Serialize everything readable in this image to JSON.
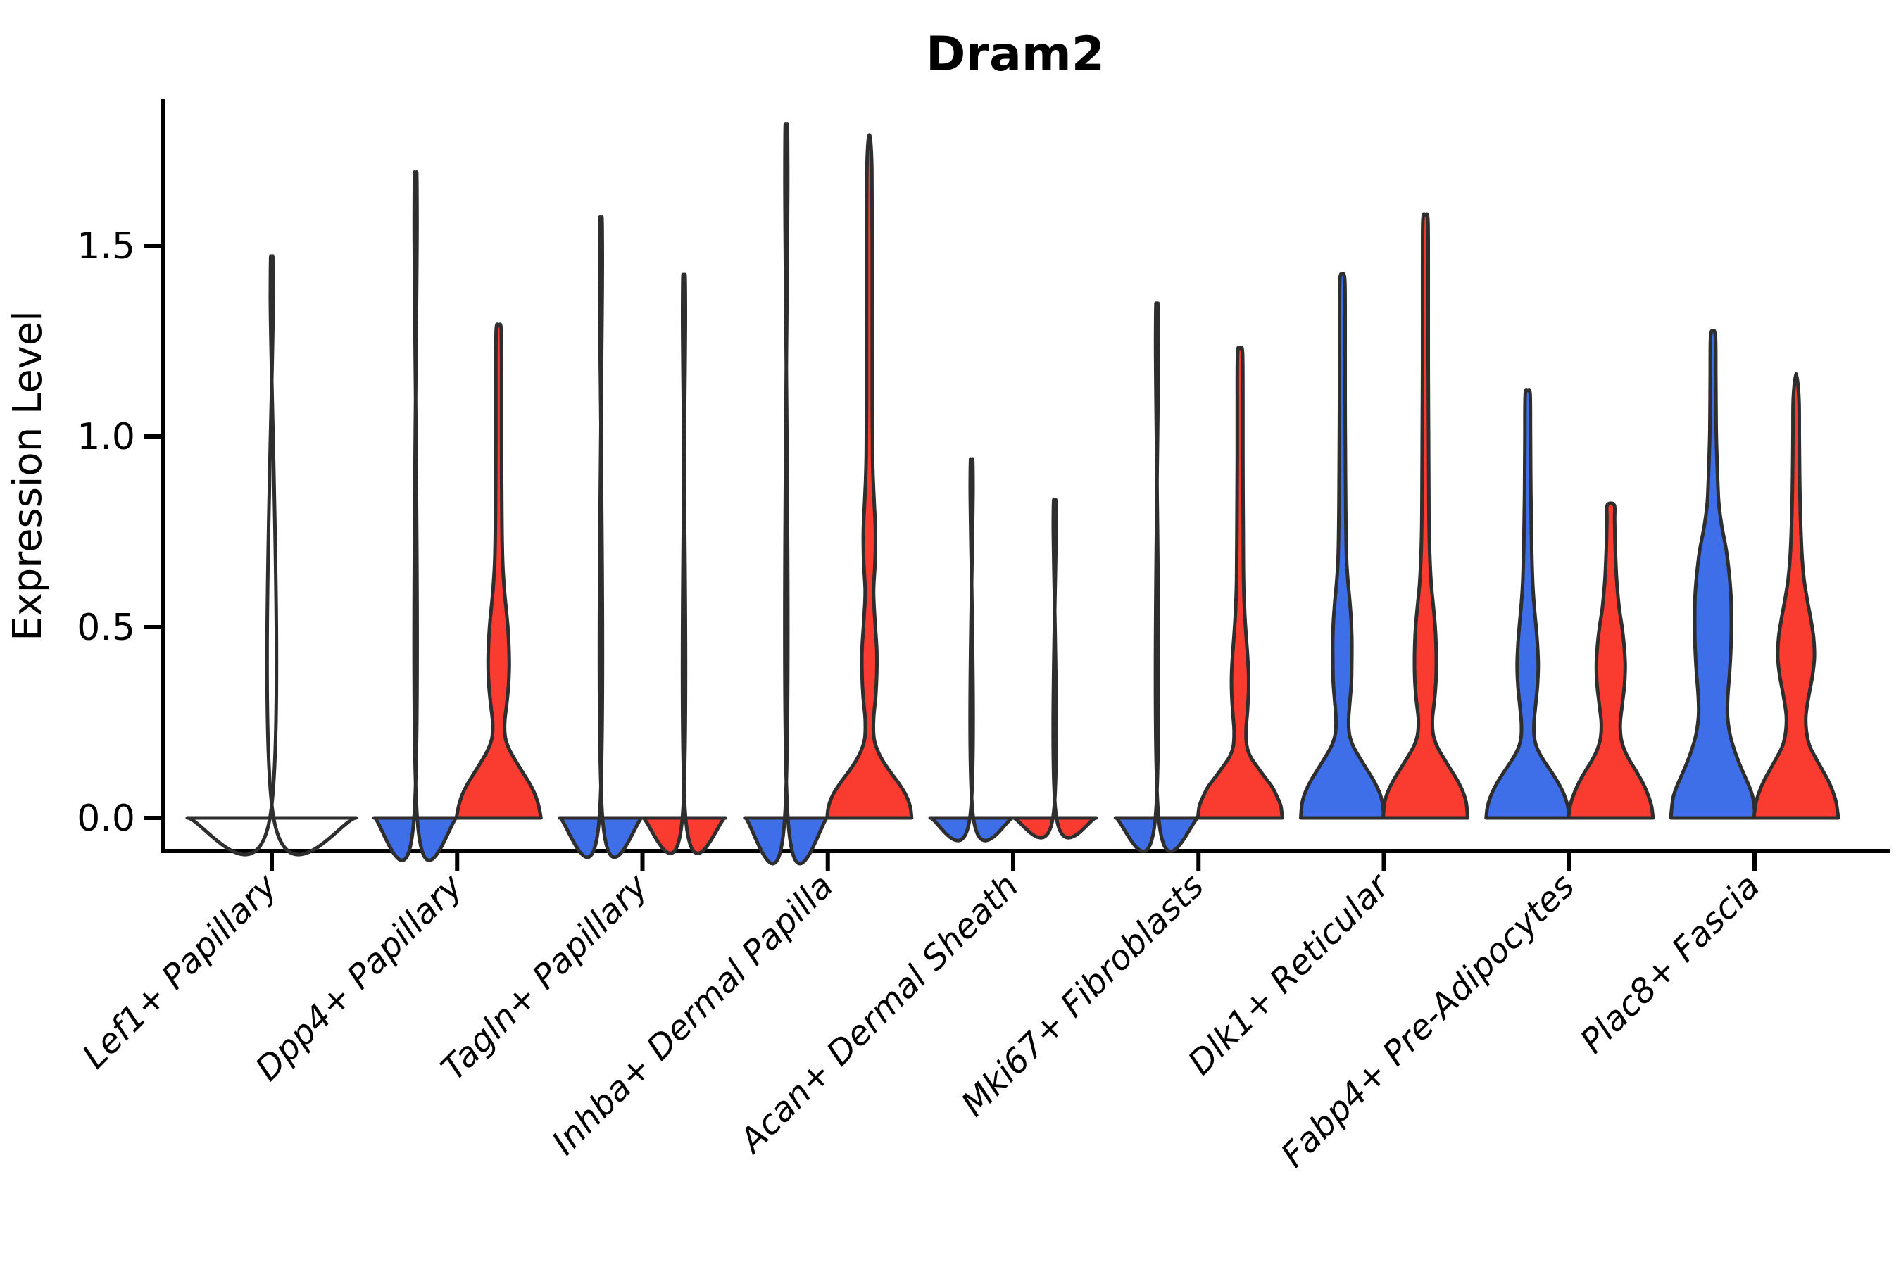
{
  "title": "Dram2",
  "axes": {
    "ylabel": "Expression Level",
    "ytick_labels": [
      "0.0",
      "0.5",
      "1.0",
      "1.5"
    ]
  },
  "colors": {
    "blue": "#3E6EE8",
    "red": "#F93B30",
    "outline": "#2E2E2E",
    "background": "#FFFFFF"
  },
  "chart_data": {
    "type": "violin",
    "title": "Dram2",
    "xlabel": "",
    "ylabel": "Expression Level",
    "yticks": [
      0.0,
      0.5,
      1.0,
      1.5
    ],
    "ytick_labels": [
      "0.0",
      "0.5",
      "1.0",
      "1.5"
    ],
    "ylim": [
      -0.09,
      1.89
    ],
    "grid": false,
    "legend": "none shown",
    "categories": [
      "Lef1+ Papillary",
      "Dpp4+ Papillary",
      "Tagln+ Papillary",
      "Inhba+ Dermal Papilla",
      "Acan+ Dermal Sheath",
      "Mki67+ Fibroblasts",
      "Dlk1+ Reticular",
      "Fabp4+ Pre-Adipocytes",
      "Plac8+ Fascia"
    ],
    "split_fill_colors": {
      "left_violin": "blue",
      "right_violin": "red"
    },
    "violin_outline_color": "#2E2E2E",
    "violins": [
      {
        "ci": 0,
        "category": "Lef1+ Papillary",
        "side": "single",
        "color": "outline",
        "max": 1.38,
        "profile": [
          [
            0,
            120
          ],
          [
            0.007,
            2
          ],
          [
            1.37,
            2
          ],
          [
            1.375,
            0
          ]
        ]
      },
      {
        "ci": 1,
        "category": "Dpp4+ Papillary",
        "side": "left",
        "color": "blue",
        "max": 1.58,
        "profile": [
          [
            0,
            59
          ],
          [
            0.007,
            2
          ],
          [
            1.575,
            2
          ],
          [
            1.58,
            0
          ]
        ]
      },
      {
        "ci": 1,
        "category": "Dpp4+ Papillary",
        "side": "right",
        "color": "red",
        "max": 1.29,
        "profile": [
          [
            0,
            60
          ],
          [
            0.03,
            57
          ],
          [
            0.06,
            52
          ],
          [
            0.09,
            44
          ],
          [
            0.12,
            34
          ],
          [
            0.15,
            24
          ],
          [
            0.18,
            15
          ],
          [
            0.21,
            9.5
          ],
          [
            0.25,
            8.5
          ],
          [
            0.3,
            11.5
          ],
          [
            0.35,
            14
          ],
          [
            0.4,
            15
          ],
          [
            0.45,
            14.5
          ],
          [
            0.5,
            13
          ],
          [
            0.55,
            10.5
          ],
          [
            0.6,
            8
          ],
          [
            0.68,
            5.5
          ],
          [
            0.8,
            4.5
          ],
          [
            1.0,
            4
          ],
          [
            1.15,
            4
          ],
          [
            1.28,
            3.5
          ],
          [
            1.29,
            0
          ]
        ]
      },
      {
        "ci": 2,
        "category": "Tagln+ Papillary",
        "side": "left",
        "color": "blue",
        "max": 1.47,
        "profile": [
          [
            0,
            59
          ],
          [
            0.007,
            2
          ],
          [
            1.465,
            2
          ],
          [
            1.47,
            0
          ]
        ]
      },
      {
        "ci": 2,
        "category": "Tagln+ Papillary",
        "side": "right",
        "color": "red",
        "max": 1.33,
        "profile": [
          [
            0,
            59
          ],
          [
            0.007,
            2
          ],
          [
            1.325,
            2
          ],
          [
            1.33,
            0
          ]
        ]
      },
      {
        "ci": 3,
        "category": "Inhba+ Dermal Papilla",
        "side": "left",
        "color": "blue",
        "max": 1.7,
        "profile": [
          [
            0,
            59
          ],
          [
            0.007,
            2
          ],
          [
            1.69,
            2
          ],
          [
            1.7,
            0
          ]
        ]
      },
      {
        "ci": 3,
        "category": "Inhba+ Dermal Papilla",
        "side": "right",
        "color": "red",
        "max": 1.79,
        "profile": [
          [
            0,
            60
          ],
          [
            0.03,
            58
          ],
          [
            0.06,
            52
          ],
          [
            0.09,
            42
          ],
          [
            0.12,
            30
          ],
          [
            0.15,
            19
          ],
          [
            0.18,
            11
          ],
          [
            0.21,
            6.5
          ],
          [
            0.26,
            6
          ],
          [
            0.32,
            9
          ],
          [
            0.38,
            10.5
          ],
          [
            0.44,
            10.5
          ],
          [
            0.5,
            8.5
          ],
          [
            0.56,
            6.5
          ],
          [
            0.6,
            6
          ],
          [
            0.65,
            7.5
          ],
          [
            0.7,
            8.5
          ],
          [
            0.76,
            8.5
          ],
          [
            0.82,
            7
          ],
          [
            0.88,
            5.5
          ],
          [
            0.95,
            4.5
          ],
          [
            1.1,
            4
          ],
          [
            1.4,
            4
          ],
          [
            1.7,
            3.5
          ],
          [
            1.79,
            0
          ]
        ]
      },
      {
        "ci": 4,
        "category": "Acan+ Dermal Sheath",
        "side": "left",
        "color": "blue",
        "max": 0.88,
        "profile": [
          [
            0,
            59
          ],
          [
            0.007,
            2
          ],
          [
            0.875,
            2
          ],
          [
            0.88,
            0
          ]
        ]
      },
      {
        "ci": 4,
        "category": "Acan+ Dermal Sheath",
        "side": "right",
        "color": "red",
        "max": 0.78,
        "profile": [
          [
            0,
            59
          ],
          [
            0.007,
            2
          ],
          [
            0.775,
            2
          ],
          [
            0.78,
            0
          ]
        ]
      },
      {
        "ci": 5,
        "category": "Mki67+ Fibroblasts",
        "side": "left",
        "color": "blue",
        "max": 1.26,
        "profile": [
          [
            0,
            59
          ],
          [
            0.007,
            2
          ],
          [
            1.255,
            2
          ],
          [
            1.26,
            0
          ]
        ]
      },
      {
        "ci": 5,
        "category": "Mki67+ Fibroblasts",
        "side": "right",
        "color": "red",
        "max": 1.23,
        "profile": [
          [
            0,
            60
          ],
          [
            0.03,
            58
          ],
          [
            0.05,
            54
          ],
          [
            0.08,
            46
          ],
          [
            0.1,
            38
          ],
          [
            0.13,
            26
          ],
          [
            0.16,
            15
          ],
          [
            0.19,
            9.5
          ],
          [
            0.23,
            8.5
          ],
          [
            0.28,
            10.5
          ],
          [
            0.33,
            12
          ],
          [
            0.38,
            12
          ],
          [
            0.43,
            10.5
          ],
          [
            0.48,
            8.5
          ],
          [
            0.54,
            6.5
          ],
          [
            0.62,
            5
          ],
          [
            0.75,
            4.5
          ],
          [
            0.95,
            4
          ],
          [
            1.1,
            4
          ],
          [
            1.22,
            3.5
          ],
          [
            1.23,
            0
          ]
        ]
      },
      {
        "ci": 6,
        "category": "Dlk1+ Reticular",
        "side": "left",
        "color": "blue",
        "max": 1.42,
        "profile": [
          [
            0,
            59
          ],
          [
            0.04,
            57
          ],
          [
            0.07,
            52
          ],
          [
            0.1,
            44
          ],
          [
            0.13,
            34
          ],
          [
            0.16,
            24
          ],
          [
            0.19,
            15
          ],
          [
            0.22,
            10
          ],
          [
            0.26,
            9
          ],
          [
            0.31,
            11
          ],
          [
            0.36,
            13
          ],
          [
            0.42,
            13.5
          ],
          [
            0.47,
            13.5
          ],
          [
            0.52,
            12.5
          ],
          [
            0.57,
            10.5
          ],
          [
            0.62,
            8
          ],
          [
            0.68,
            6
          ],
          [
            0.78,
            5
          ],
          [
            0.9,
            4.5
          ],
          [
            1.1,
            4
          ],
          [
            1.3,
            4
          ],
          [
            1.41,
            3.5
          ],
          [
            1.425,
            0
          ]
        ]
      },
      {
        "ci": 6,
        "category": "Dlk1+ Reticular",
        "side": "right",
        "color": "red",
        "max": 1.57,
        "profile": [
          [
            0,
            60
          ],
          [
            0.04,
            58
          ],
          [
            0.07,
            53
          ],
          [
            0.1,
            45
          ],
          [
            0.13,
            35
          ],
          [
            0.16,
            25
          ],
          [
            0.19,
            16
          ],
          [
            0.22,
            11
          ],
          [
            0.26,
            10
          ],
          [
            0.31,
            13
          ],
          [
            0.36,
            15
          ],
          [
            0.41,
            15.5
          ],
          [
            0.46,
            15
          ],
          [
            0.51,
            13.5
          ],
          [
            0.56,
            11
          ],
          [
            0.62,
            8
          ],
          [
            0.7,
            6
          ],
          [
            0.8,
            5
          ],
          [
            1.0,
            4.5
          ],
          [
            1.2,
            4
          ],
          [
            1.45,
            4
          ],
          [
            1.57,
            3.5
          ],
          [
            1.58,
            0
          ]
        ]
      },
      {
        "ci": 7,
        "category": "Fabp4+ Pre-Adipocytes",
        "side": "left",
        "color": "blue",
        "max": 1.12,
        "profile": [
          [
            0,
            59
          ],
          [
            0.03,
            57
          ],
          [
            0.06,
            52
          ],
          [
            0.09,
            44
          ],
          [
            0.12,
            34
          ],
          [
            0.15,
            23
          ],
          [
            0.18,
            14
          ],
          [
            0.21,
            9.5
          ],
          [
            0.25,
            9
          ],
          [
            0.3,
            11.5
          ],
          [
            0.35,
            14
          ],
          [
            0.4,
            15
          ],
          [
            0.45,
            14
          ],
          [
            0.5,
            12
          ],
          [
            0.55,
            9.5
          ],
          [
            0.62,
            7
          ],
          [
            0.72,
            5.5
          ],
          [
            0.85,
            4.5
          ],
          [
            1.0,
            4
          ],
          [
            1.11,
            3.5
          ],
          [
            1.12,
            0
          ]
        ]
      },
      {
        "ci": 7,
        "category": "Fabp4+ Pre-Adipocytes",
        "side": "right",
        "color": "red",
        "max": 0.82,
        "blunt": true,
        "profile": [
          [
            0,
            60
          ],
          [
            0.03,
            58
          ],
          [
            0.06,
            53
          ],
          [
            0.09,
            46
          ],
          [
            0.12,
            37
          ],
          [
            0.15,
            27
          ],
          [
            0.18,
            19
          ],
          [
            0.21,
            14.5
          ],
          [
            0.25,
            13.5
          ],
          [
            0.3,
            16.5
          ],
          [
            0.35,
            19.5
          ],
          [
            0.4,
            20.5
          ],
          [
            0.45,
            19
          ],
          [
            0.5,
            16
          ],
          [
            0.55,
            12
          ],
          [
            0.62,
            8.5
          ],
          [
            0.7,
            6.5
          ],
          [
            0.78,
            5.5
          ],
          [
            0.82,
            5
          ]
        ]
      },
      {
        "ci": 8,
        "category": "Plac8+ Fascia",
        "side": "left",
        "color": "blue",
        "max": 1.28,
        "profile": [
          [
            0,
            60
          ],
          [
            0.05,
            57
          ],
          [
            0.08,
            52
          ],
          [
            0.11,
            45
          ],
          [
            0.14,
            38
          ],
          [
            0.18,
            30
          ],
          [
            0.22,
            24
          ],
          [
            0.27,
            20.5
          ],
          [
            0.32,
            21
          ],
          [
            0.38,
            23.5
          ],
          [
            0.45,
            25.5
          ],
          [
            0.52,
            26
          ],
          [
            0.58,
            25.5
          ],
          [
            0.64,
            23
          ],
          [
            0.7,
            19
          ],
          [
            0.77,
            12
          ],
          [
            0.83,
            8
          ],
          [
            0.92,
            6
          ],
          [
            1.02,
            4.5
          ],
          [
            1.15,
            4
          ],
          [
            1.26,
            3.5
          ],
          [
            1.277,
            0
          ]
        ]
      },
      {
        "ci": 8,
        "category": "Plac8+ Fascia",
        "side": "right",
        "color": "red",
        "max": 1.17,
        "profile": [
          [
            0,
            60
          ],
          [
            0.04,
            57
          ],
          [
            0.07,
            52
          ],
          [
            0.1,
            45
          ],
          [
            0.13,
            36
          ],
          [
            0.16,
            27
          ],
          [
            0.19,
            19
          ],
          [
            0.23,
            14.5
          ],
          [
            0.27,
            14
          ],
          [
            0.32,
            18
          ],
          [
            0.37,
            23
          ],
          [
            0.42,
            26
          ],
          [
            0.47,
            25
          ],
          [
            0.52,
            21
          ],
          [
            0.57,
            16
          ],
          [
            0.63,
            11
          ],
          [
            0.7,
            8
          ],
          [
            0.8,
            6
          ],
          [
            0.9,
            5
          ],
          [
            1.0,
            4.5
          ],
          [
            1.1,
            4
          ],
          [
            1.165,
            0
          ]
        ]
      }
    ]
  }
}
